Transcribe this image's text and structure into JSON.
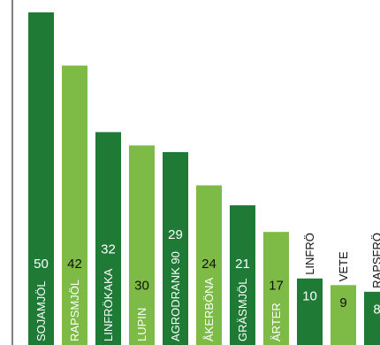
{
  "chart_data": {
    "type": "bar",
    "categories": [
      "SOJAMJÖL",
      "RAPSMJÖL",
      "LINFRÖKAKA",
      "LUPIN",
      "AGRODRANK 90",
      "ÅKERBÖNA",
      "GRÄSMJÖL",
      "ÄRTER",
      "LINFRÖ",
      "VETE",
      "RAPSFRÖ"
    ],
    "values": [
      50,
      42,
      32,
      30,
      29,
      24,
      21,
      17,
      10,
      9,
      8
    ],
    "title": "",
    "xlabel": "",
    "ylabel": "",
    "ylim": [
      0,
      50
    ],
    "grid": false,
    "legend": "none",
    "colors": {
      "dark": "#1e7a35",
      "light": "#7dbb46",
      "axis": "#555555",
      "label_inside": "#ffffff",
      "label_outside": "#111111"
    }
  }
}
